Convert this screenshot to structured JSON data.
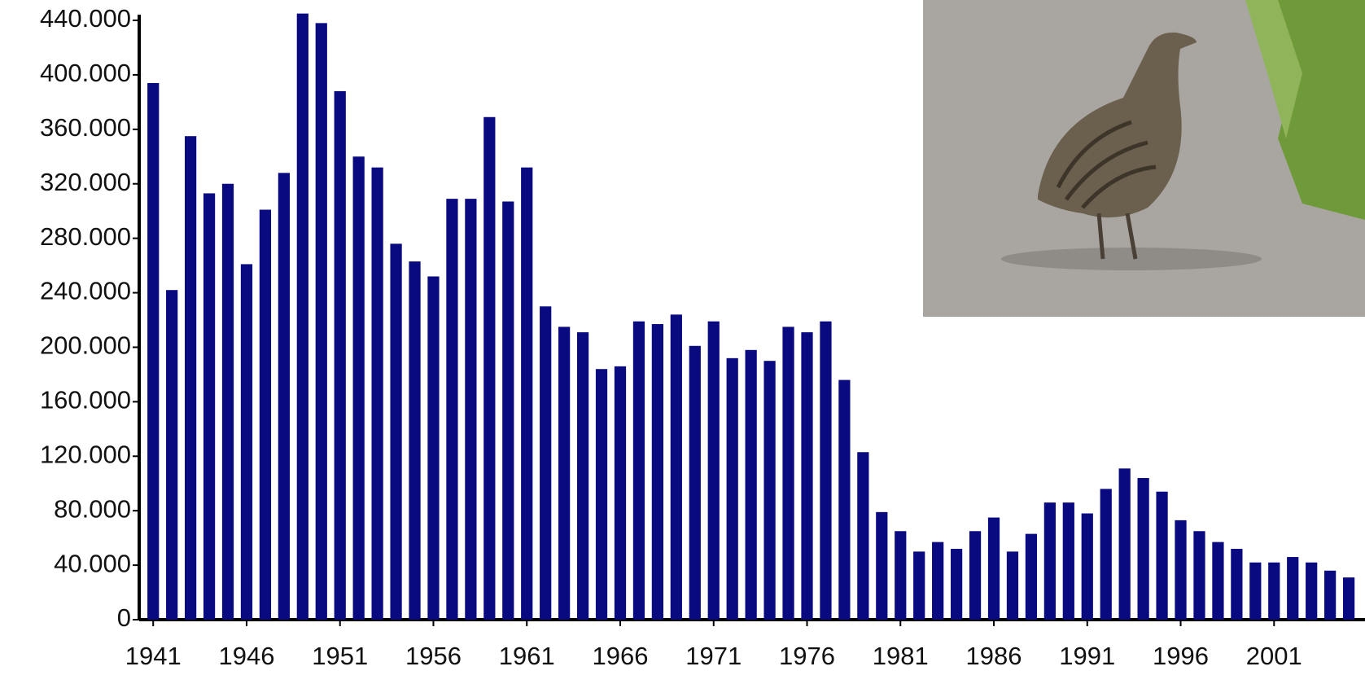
{
  "chart_data": {
    "type": "bar",
    "color": "#0a0a80",
    "x": [
      1941,
      1942,
      1943,
      1944,
      1945,
      1946,
      1947,
      1948,
      1949,
      1950,
      1951,
      1952,
      1953,
      1954,
      1955,
      1956,
      1957,
      1958,
      1959,
      1960,
      1961,
      1962,
      1963,
      1964,
      1965,
      1966,
      1967,
      1968,
      1969,
      1970,
      1971,
      1972,
      1973,
      1974,
      1975,
      1976,
      1977,
      1978,
      1979,
      1980,
      1981,
      1982,
      1983,
      1984,
      1985,
      1986,
      1987,
      1988,
      1989,
      1990,
      1991,
      1992,
      1993,
      1994,
      1995,
      1996,
      1997,
      1998,
      1999,
      2000,
      2001,
      2002,
      2003,
      2004,
      2005
    ],
    "values": [
      394000,
      242000,
      355000,
      313000,
      320000,
      261000,
      301000,
      328000,
      445000,
      438000,
      388000,
      340000,
      332000,
      276000,
      263000,
      252000,
      309000,
      309000,
      369000,
      307000,
      332000,
      230000,
      215000,
      211000,
      184000,
      186000,
      219000,
      217000,
      224000,
      201000,
      219000,
      192000,
      198000,
      190000,
      215000,
      211000,
      219000,
      176000,
      123000,
      79000,
      65000,
      50000,
      57000,
      52000,
      65000,
      75000,
      50000,
      63000,
      86000,
      86000,
      78000,
      96000,
      111000,
      104000,
      94000,
      73000,
      65000,
      57000,
      52000,
      42000,
      42000,
      46000,
      42000,
      36000,
      31000
    ],
    "xlim": [
      1940.25,
      2005.65
    ],
    "xticks": [
      1941,
      1946,
      1951,
      1956,
      1961,
      1966,
      1971,
      1976,
      1981,
      1986,
      1991,
      1996,
      2001
    ],
    "ylim": [
      0,
      440000
    ],
    "yticks": [
      0,
      {
        "value": 40000,
        "label": "40.000"
      },
      {
        "value": 80000,
        "label": "80.000"
      },
      {
        "value": 120000,
        "label": "120.000"
      },
      {
        "value": 160000,
        "label": "160.000"
      },
      {
        "value": 200000,
        "label": "200.000"
      },
      {
        "value": 240000,
        "label": "240.000"
      },
      {
        "value": 280000,
        "label": "280.000"
      },
      {
        "value": 320000,
        "label": "320.000"
      },
      {
        "value": 360000,
        "label": "360.000"
      },
      {
        "value": 400000,
        "label": "400.000"
      },
      {
        "value": 440000,
        "label": "440.000"
      }
    ]
  }
}
